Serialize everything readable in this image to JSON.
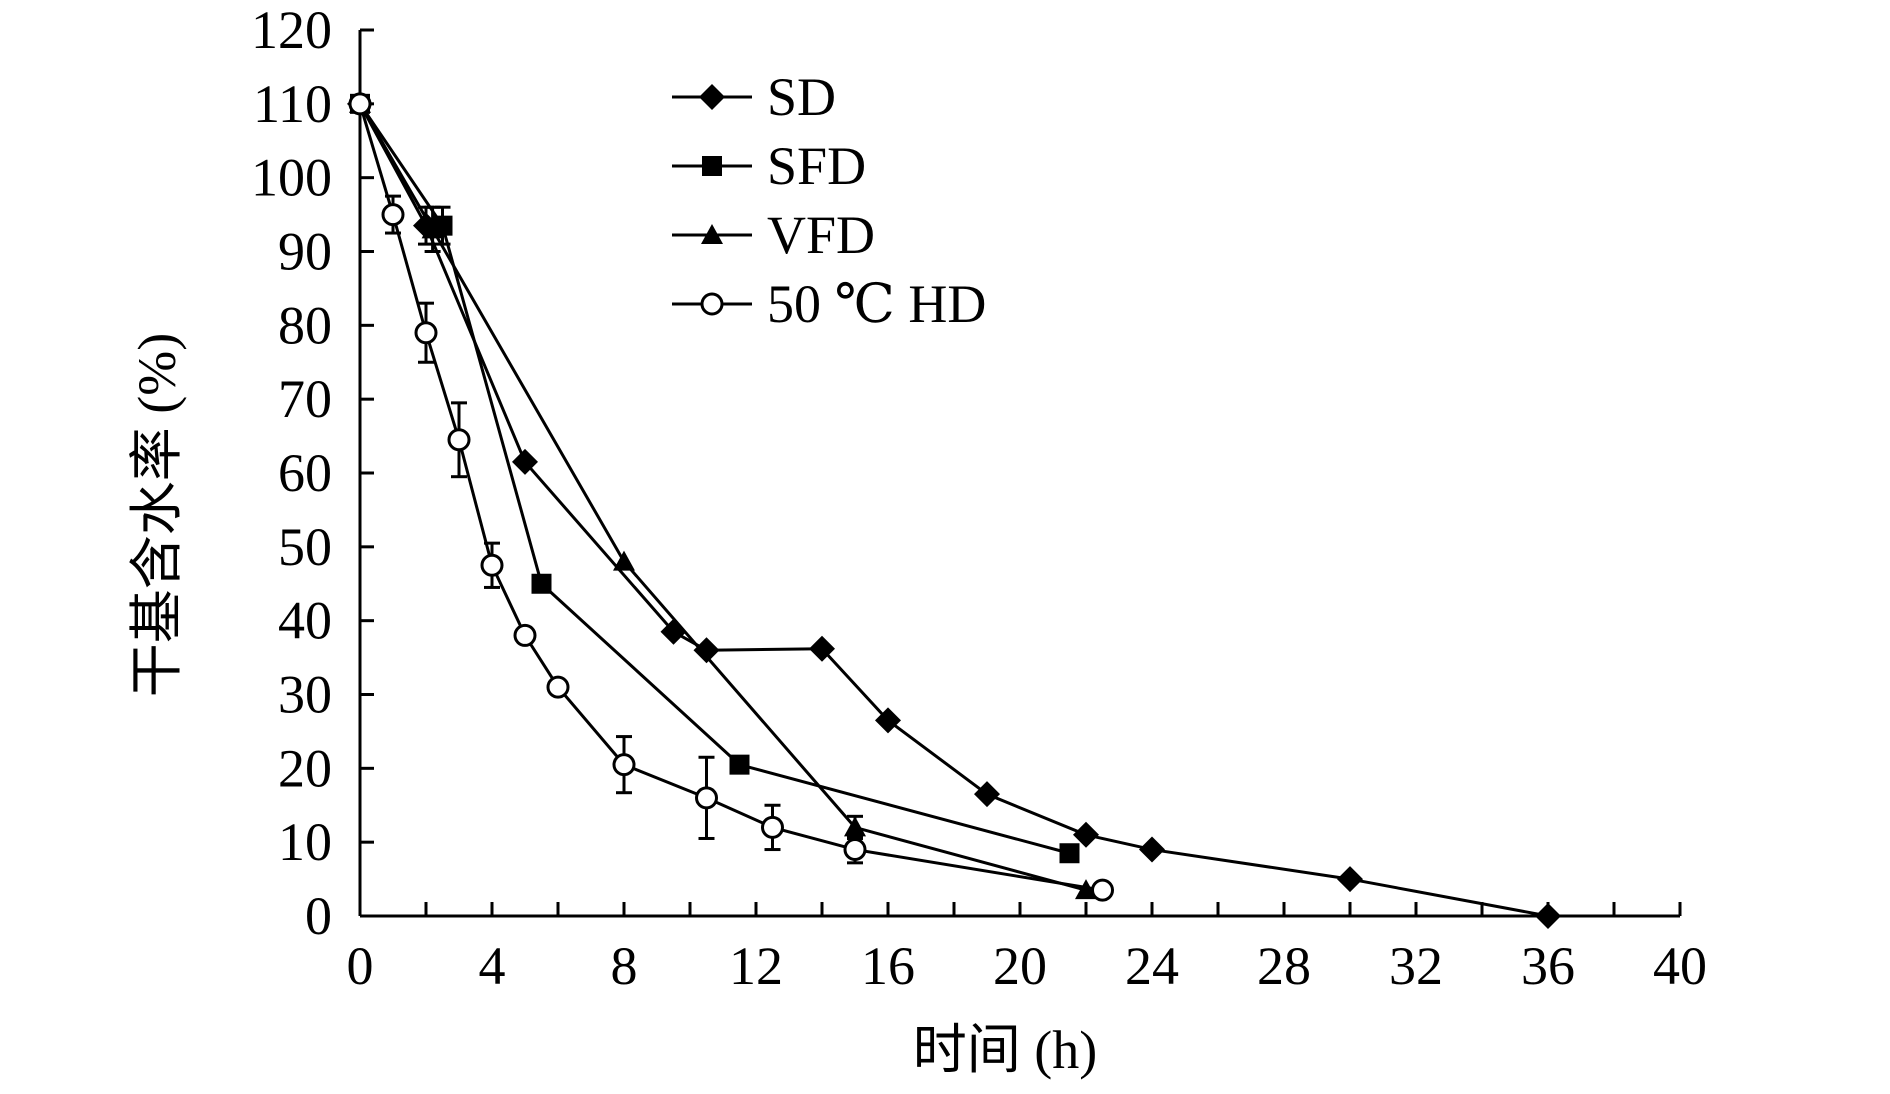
{
  "chart_data": {
    "type": "line",
    "title": "",
    "xlabel": "时间 (h)",
    "ylabel": "干基含水率 (%)",
    "xlim": [
      0,
      40
    ],
    "ylim": [
      0,
      120
    ],
    "xticks": [
      0,
      4,
      8,
      12,
      16,
      20,
      24,
      28,
      32,
      36,
      40
    ],
    "yticks": [
      0,
      10,
      20,
      30,
      40,
      50,
      60,
      70,
      80,
      90,
      100,
      110,
      120
    ],
    "grid": false,
    "legend_position": "top-center",
    "series": [
      {
        "name": "SD",
        "marker": "diamond-filled",
        "x": [
          0,
          2,
          5,
          9.5,
          10.5,
          14,
          16,
          19,
          22,
          24,
          30,
          36
        ],
        "y": [
          110,
          93.5,
          61.5,
          38.5,
          36,
          36.2,
          26.5,
          16.5,
          11,
          9,
          5,
          0
        ],
        "err": [
          0,
          2.5,
          0,
          0,
          0,
          0,
          0,
          0,
          0,
          0,
          0,
          0
        ]
      },
      {
        "name": "SFD",
        "marker": "square-filled",
        "x": [
          0,
          2.5,
          5.5,
          11.5,
          21.5
        ],
        "y": [
          110,
          93.5,
          45,
          20.5,
          8.5
        ],
        "err": [
          0,
          2.5,
          0,
          0,
          0
        ]
      },
      {
        "name": "VFD",
        "marker": "triangle-filled",
        "x": [
          0,
          2.2,
          8,
          15,
          22
        ],
        "y": [
          110,
          93,
          48,
          12,
          3.5
        ],
        "err": [
          0,
          3,
          0,
          1.5,
          0
        ]
      },
      {
        "name": "50 ℃ HD",
        "marker": "circle-open",
        "x": [
          0,
          1,
          2,
          3,
          4,
          5,
          6,
          8,
          10.5,
          12.5,
          15,
          22.5
        ],
        "y": [
          110,
          95,
          79,
          64.5,
          47.5,
          38,
          31,
          20.5,
          16,
          12,
          9,
          3.5
        ],
        "err": [
          0,
          2.5,
          4,
          5,
          3,
          0,
          0,
          3.8,
          5.5,
          3,
          1.8,
          0
        ]
      }
    ]
  }
}
